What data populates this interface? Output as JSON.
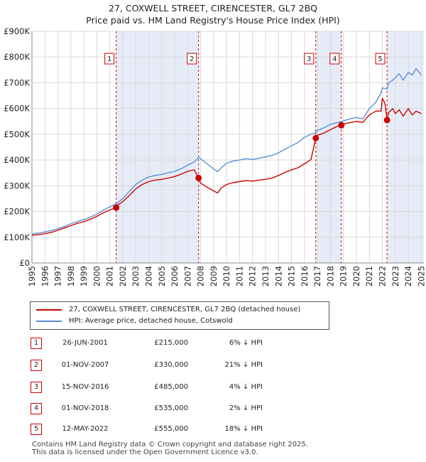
{
  "chart_data": {
    "type": "line",
    "title": "27, COXWELL STREET, CIRENCESTER, GL7 2BQ",
    "subtitle": "Price paid vs. HM Land Registry's House Price Index (HPI)",
    "xlabel": "",
    "ylabel": "",
    "xlim": [
      1995,
      2025.2
    ],
    "ylim": [
      0,
      900000
    ],
    "y_ticks": [
      0,
      100000,
      200000,
      300000,
      400000,
      500000,
      600000,
      700000,
      800000,
      900000
    ],
    "y_tick_labels": [
      "£0",
      "£100K",
      "£200K",
      "£300K",
      "£400K",
      "£500K",
      "£600K",
      "£700K",
      "£800K",
      "£900K"
    ],
    "x_ticks": [
      "1995",
      "1996",
      "1997",
      "1998",
      "1999",
      "2000",
      "2001",
      "2002",
      "2003",
      "2004",
      "2005",
      "2006",
      "2007",
      "2008",
      "2009",
      "2010",
      "2011",
      "2012",
      "2013",
      "2014",
      "2015",
      "2016",
      "2017",
      "2018",
      "2019",
      "2020",
      "2021",
      "2022",
      "2023",
      "2024",
      "2025"
    ],
    "grid": true,
    "series": [
      {
        "name": "27, COXWELL STREET, CIRENCESTER, GL7 2BQ (detached house)",
        "color": "#cc0000",
        "x": [
          1995.0,
          1995.5,
          1996.0,
          1996.5,
          1997.0,
          1997.5,
          1998.0,
          1998.5,
          1999.0,
          1999.5,
          2000.0,
          2000.5,
          2001.0,
          2001.49,
          2001.5,
          2002.0,
          2002.5,
          2003.0,
          2003.5,
          2004.0,
          2004.5,
          2005.0,
          2005.5,
          2006.0,
          2006.5,
          2007.0,
          2007.5,
          2007.84,
          2008.0,
          2008.5,
          2009.0,
          2009.3,
          2009.6,
          2010.0,
          2010.5,
          2011.0,
          2011.5,
          2012.0,
          2012.5,
          2013.0,
          2013.5,
          2014.0,
          2014.5,
          2015.0,
          2015.5,
          2016.0,
          2016.5,
          2016.87,
          2017.0,
          2017.5,
          2018.0,
          2018.5,
          2018.84,
          2019.0,
          2019.5,
          2020.0,
          2020.5,
          2021.0,
          2021.5,
          2021.9,
          2022.0,
          2022.2,
          2022.36,
          2022.5,
          2022.8,
          2023.0,
          2023.3,
          2023.6,
          2024.0,
          2024.3,
          2024.6,
          2025.0
        ],
        "y": [
          108000,
          110000,
          114000,
          119000,
          127000,
          136000,
          145000,
          154000,
          160000,
          170000,
          181000,
          195000,
          206000,
          215000,
          222000,
          238000,
          262000,
          288000,
          305000,
          316000,
          322000,
          325000,
          330000,
          336000,
          345000,
          356000,
          362000,
          330000,
          310000,
          294000,
          280000,
          272000,
          292000,
          305000,
          312000,
          316000,
          320000,
          318000,
          322000,
          325000,
          330000,
          340000,
          352000,
          362000,
          370000,
          385000,
          402000,
          485000,
          496000,
          505000,
          518000,
          530000,
          535000,
          540000,
          545000,
          550000,
          546000,
          575000,
          590000,
          590000,
          640000,
          620000,
          555000,
          585000,
          600000,
          580000,
          595000,
          570000,
          600000,
          575000,
          590000,
          580000
        ]
      },
      {
        "name": "HPI: Average price, detached house, Cotswold",
        "color": "#5b8fd4",
        "x": [
          1995.0,
          1995.5,
          1996.0,
          1996.5,
          1997.0,
          1997.5,
          1998.0,
          1998.5,
          1999.0,
          1999.5,
          2000.0,
          2000.5,
          2001.0,
          2001.5,
          2002.0,
          2002.5,
          2003.0,
          2003.5,
          2004.0,
          2004.5,
          2005.0,
          2005.5,
          2006.0,
          2006.5,
          2007.0,
          2007.5,
          2007.84,
          2008.0,
          2008.5,
          2009.0,
          2009.3,
          2009.6,
          2010.0,
          2010.5,
          2011.0,
          2011.5,
          2012.0,
          2012.5,
          2013.0,
          2013.5,
          2014.0,
          2014.5,
          2015.0,
          2015.5,
          2016.0,
          2016.5,
          2016.87,
          2017.0,
          2017.5,
          2018.0,
          2018.5,
          2018.84,
          2019.0,
          2019.5,
          2020.0,
          2020.5,
          2021.0,
          2021.5,
          2021.9,
          2022.0,
          2022.36,
          2022.5,
          2022.8,
          2023.0,
          2023.3,
          2023.6,
          2024.0,
          2024.3,
          2024.6,
          2025.0
        ],
        "y": [
          113000,
          116000,
          121000,
          126000,
          133000,
          142000,
          152000,
          161000,
          168000,
          178000,
          190000,
          205000,
          218000,
          230000,
          250000,
          278000,
          305000,
          322000,
          334000,
          340000,
          344000,
          350000,
          356000,
          366000,
          380000,
          392000,
          410000,
          405000,
          385000,
          365000,
          355000,
          370000,
          388000,
          396000,
          400000,
          405000,
          402000,
          407000,
          412000,
          418000,
          428000,
          442000,
          455000,
          468000,
          488000,
          500000,
          505000,
          515000,
          525000,
          538000,
          545000,
          548000,
          552000,
          560000,
          565000,
          560000,
          600000,
          625000,
          660000,
          680000,
          675000,
          700000,
          710000,
          720000,
          735000,
          710000,
          740000,
          730000,
          755000,
          730000
        ]
      }
    ],
    "transactions": [
      {
        "label": "1",
        "date": "26-JUN-2001",
        "price": "£215,000",
        "hpi": "6% ↓ HPI",
        "x": 2001.49,
        "y": 215000
      },
      {
        "label": "2",
        "date": "01-NOV-2007",
        "price": "£330,000",
        "hpi": "21% ↓ HPI",
        "x": 2007.84,
        "y": 330000
      },
      {
        "label": "3",
        "date": "15-NOV-2016",
        "price": "£485,000",
        "hpi": "4% ↓ HPI",
        "x": 2016.87,
        "y": 485000
      },
      {
        "label": "4",
        "date": "01-NOV-2018",
        "price": "£535,000",
        "hpi": "2% ↓ HPI",
        "x": 2018.84,
        "y": 535000
      },
      {
        "label": "5",
        "date": "12-MAY-2022",
        "price": "£555,000",
        "hpi": "18% ↓ HPI",
        "x": 2022.36,
        "y": 555000
      }
    ]
  },
  "footer": {
    "line1": "Contains HM Land Registry data © Crown copyright and database right 2025.",
    "line2": "This data is licensed under the Open Government Licence v3.0."
  }
}
